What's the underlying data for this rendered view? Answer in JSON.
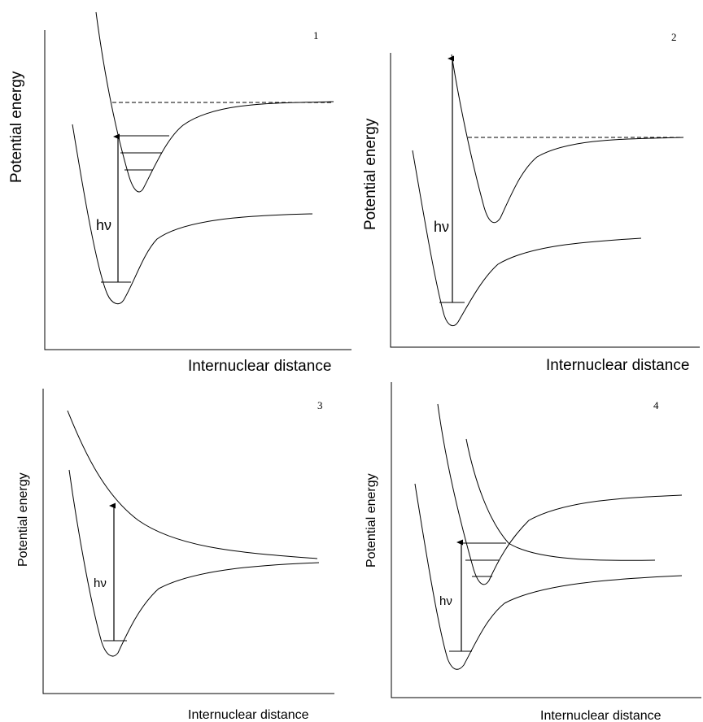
{
  "panels": [
    {
      "number": "1",
      "ylabel": "Potential energy",
      "xlabel": "Internuclear distance",
      "transition": "hν"
    },
    {
      "number": "2",
      "ylabel": "Potential energy",
      "xlabel": "Internuclear distance",
      "transition": "hν"
    },
    {
      "number": "3",
      "ylabel": "Potential energy",
      "xlabel": "Internuclear distance",
      "transition": "hν"
    },
    {
      "number": "4",
      "ylabel": "Potential energy",
      "xlabel": "Internuclear distance",
      "transition": "hν"
    }
  ]
}
